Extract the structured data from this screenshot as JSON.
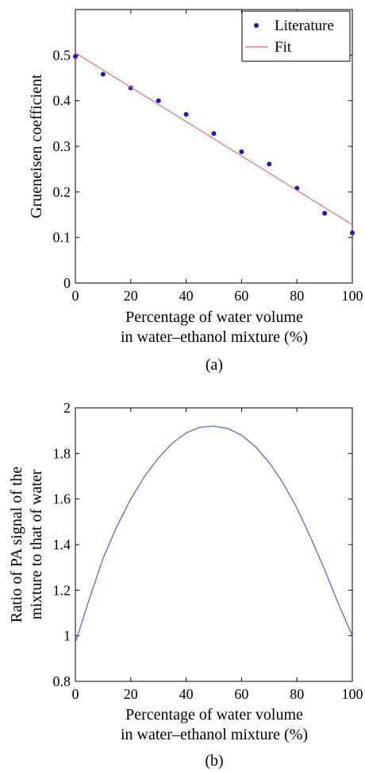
{
  "chart_data": [
    {
      "type": "scatter",
      "panel_label": "(a)",
      "xlabel_line1": "Percentage of water volume",
      "xlabel_line2": "in water–ethanol mixture (%)",
      "ylabel": "Grueneisen coefficient",
      "xlim": [
        0,
        100
      ],
      "ylim": [
        0,
        0.6
      ],
      "xticks": [
        0,
        20,
        40,
        60,
        80,
        100
      ],
      "yticks": [
        0,
        0.1,
        0.2,
        0.3,
        0.4,
        0.5
      ],
      "xtick_labels": [
        "0",
        "20",
        "40",
        "60",
        "80",
        "100"
      ],
      "ytick_labels": [
        "0",
        "0.1",
        "0.2",
        "0.3",
        "0.4",
        "0.5"
      ],
      "legend": {
        "position": "top-right",
        "entries": [
          {
            "label": "Literature",
            "color": "#1a1acc",
            "marker": "dot"
          },
          {
            "label": "Fit",
            "color": "#e0706a",
            "marker": "line"
          }
        ]
      },
      "series": [
        {
          "name": "Literature",
          "color": "#1a1acc",
          "x": [
            0,
            10,
            20,
            30,
            40,
            50,
            60,
            70,
            80,
            90,
            100
          ],
          "y": [
            0.497,
            0.458,
            0.428,
            0.4,
            0.37,
            0.328,
            0.288,
            0.261,
            0.208,
            0.153,
            0.11
          ]
        },
        {
          "name": "Fit",
          "color": "#e0706a",
          "x": [
            0,
            100
          ],
          "y": [
            0.505,
            0.128
          ]
        }
      ]
    },
    {
      "type": "line",
      "panel_label": "(b)",
      "xlabel_line1": "Percentage of water volume",
      "xlabel_line2": "in water–ethanol mixture (%)",
      "ylabel_line1": "Ratio of PA signal of the",
      "ylabel_line2": "mixture to that of water",
      "xlim": [
        0,
        100
      ],
      "ylim": [
        0.8,
        2
      ],
      "xticks": [
        0,
        20,
        40,
        60,
        80,
        100
      ],
      "yticks": [
        0.8,
        1,
        1.2,
        1.4,
        1.6,
        1.8,
        2
      ],
      "xtick_labels": [
        "0",
        "20",
        "40",
        "60",
        "80",
        "100"
      ],
      "ytick_labels": [
        "0.8",
        "1",
        "1.2",
        "1.4",
        "1.6",
        "1.8",
        "2"
      ],
      "series": [
        {
          "color": "#4a5fd6",
          "x": [
            0,
            5,
            10,
            15,
            20,
            25,
            30,
            35,
            40,
            45,
            50,
            55,
            60,
            65,
            70,
            75,
            80,
            85,
            90,
            95,
            100
          ],
          "y": [
            0.97,
            1.16,
            1.34,
            1.48,
            1.6,
            1.7,
            1.78,
            1.845,
            1.89,
            1.915,
            1.92,
            1.91,
            1.88,
            1.83,
            1.76,
            1.67,
            1.56,
            1.43,
            1.29,
            1.14,
            1.0
          ]
        }
      ]
    }
  ]
}
